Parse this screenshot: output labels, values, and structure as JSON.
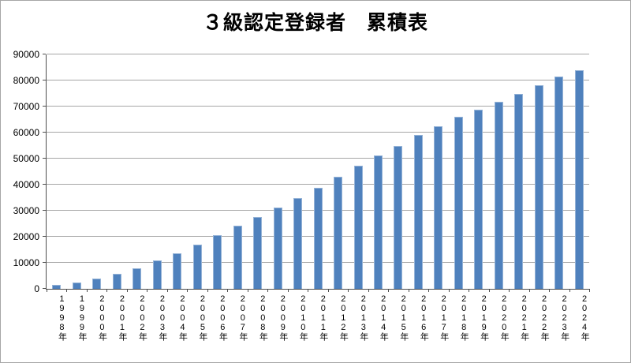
{
  "chart": {
    "title": "３級認定登録者　累積表"
  },
  "chart_data": {
    "type": "bar",
    "title": "３級認定登録者　累積表",
    "categories": [
      "1998年",
      "1999年",
      "2000年",
      "2001年",
      "2002年",
      "2003年",
      "2004年",
      "2005年",
      "2006年",
      "2007年",
      "2008年",
      "2009年",
      "2010年",
      "2011年",
      "2012年",
      "2013年",
      "2014年",
      "2015年",
      "2016年",
      "2017年",
      "2018年",
      "2019年",
      "2020年",
      "2021年",
      "2022年",
      "2023年",
      "2024年"
    ],
    "values": [
      1300,
      2100,
      3700,
      5400,
      7600,
      10700,
      13400,
      16700,
      20200,
      23900,
      27400,
      30900,
      34600,
      38400,
      42600,
      46900,
      51000,
      54700,
      58700,
      62100,
      65900,
      68500,
      71500,
      74700,
      77800,
      81300,
      83500
    ],
    "xlabel": "",
    "ylabel": "",
    "ylim": [
      0,
      90000
    ],
    "ytick_step": 10000,
    "yticks": [
      "0",
      "10000",
      "20000",
      "30000",
      "40000",
      "50000",
      "60000",
      "70000",
      "80000",
      "90000"
    ],
    "grid": true,
    "legend": "none",
    "bar_color": "#4F81BD",
    "bar_edge_color": "#95B3D7",
    "grid_color": "#A6A6A6",
    "axis_color": "#4D4D4D"
  }
}
